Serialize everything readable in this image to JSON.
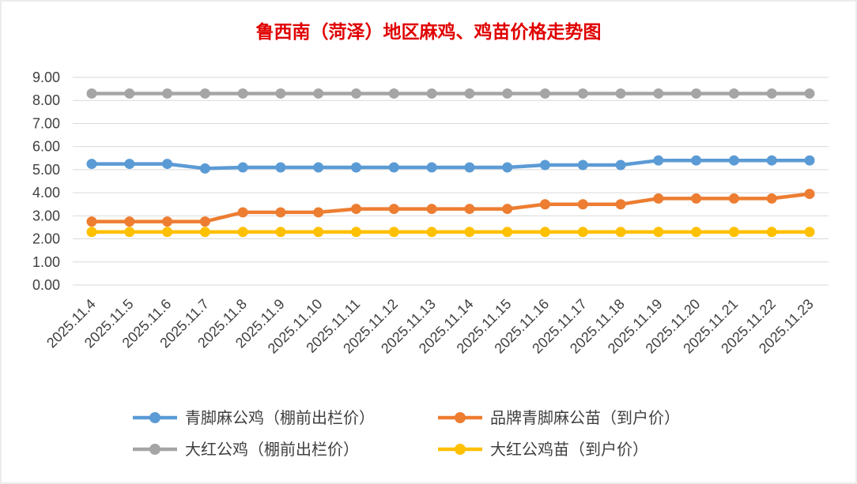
{
  "chart_data": {
    "type": "line",
    "title": "鲁西南（菏泽）地区麻鸡、鸡苗价格走势图",
    "xlabel": "",
    "ylabel": "",
    "ylim": [
      0,
      9
    ],
    "ytick_labels": [
      "0.00",
      "1.00",
      "2.00",
      "3.00",
      "4.00",
      "5.00",
      "6.00",
      "7.00",
      "8.00",
      "9.00"
    ],
    "grid": true,
    "legend_position": "bottom",
    "categories": [
      "2025.11.4",
      "2025.11.5",
      "2025.11.6",
      "2025.11.7",
      "2025.11.8",
      "2025.11.9",
      "2025.11.10",
      "2025.11.11",
      "2025.11.12",
      "2025.11.13",
      "2025.11.14",
      "2025.11.15",
      "2025.11.16",
      "2025.11.17",
      "2025.11.18",
      "2025.11.19",
      "2025.11.20",
      "2025.11.21",
      "2025.11.22",
      "2025.11.23"
    ],
    "series": [
      {
        "name": "青脚麻公鸡（棚前出栏价）",
        "color": "#5b9bd5",
        "values": [
          5.25,
          5.25,
          5.25,
          5.05,
          5.1,
          5.1,
          5.1,
          5.1,
          5.1,
          5.1,
          5.1,
          5.1,
          5.2,
          5.2,
          5.2,
          5.4,
          5.4,
          5.4,
          5.4,
          5.4
        ]
      },
      {
        "name": "品牌青脚麻公苗（到户价）",
        "color": "#ed7d31",
        "values": [
          2.75,
          2.75,
          2.75,
          2.75,
          3.15,
          3.15,
          3.15,
          3.3,
          3.3,
          3.3,
          3.3,
          3.3,
          3.5,
          3.5,
          3.5,
          3.75,
          3.75,
          3.75,
          3.75,
          3.95
        ]
      },
      {
        "name": "大红公鸡（棚前出栏价）",
        "color": "#a5a5a5",
        "values": [
          8.3,
          8.3,
          8.3,
          8.3,
          8.3,
          8.3,
          8.3,
          8.3,
          8.3,
          8.3,
          8.3,
          8.3,
          8.3,
          8.3,
          8.3,
          8.3,
          8.3,
          8.3,
          8.3,
          8.3
        ]
      },
      {
        "name": "大红公鸡苗（到户价）",
        "color": "#ffc000",
        "values": [
          2.3,
          2.3,
          2.3,
          2.3,
          2.3,
          2.3,
          2.3,
          2.3,
          2.3,
          2.3,
          2.3,
          2.3,
          2.3,
          2.3,
          2.3,
          2.3,
          2.3,
          2.3,
          2.3,
          2.3
        ]
      }
    ]
  },
  "colors": {
    "title": "#e00000",
    "gridline": "#d9d9d9",
    "border": "#d9d9d9",
    "text": "#404040"
  }
}
